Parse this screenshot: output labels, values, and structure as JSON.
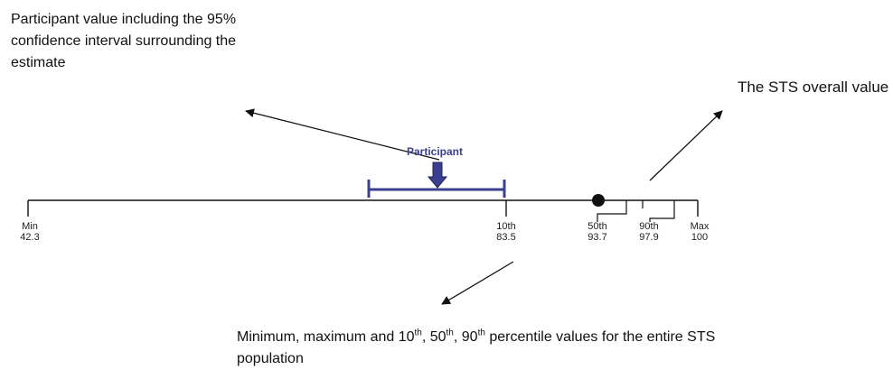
{
  "annotations": {
    "participant_note": "Participant value including the 95% confidence interval surrounding the estimate",
    "sts_overall_note": "The STS overall value",
    "bottom_note": {
      "prefix": "Minimum, maximum and 10",
      "sup1": "th",
      "mid1": ", 50",
      "sup2": "th",
      "mid2": ", 90",
      "sup3": "th",
      "suffix": " percentile values for the entire STS population"
    }
  },
  "scale": {
    "participant_label": "Participant",
    "markers": [
      {
        "name": "Min",
        "value": "42.3"
      },
      {
        "name": "10th",
        "value": "83.5"
      },
      {
        "name": "50th",
        "value": "93.7"
      },
      {
        "name": "90th",
        "value": "97.9"
      },
      {
        "name": "Max",
        "value": "100"
      }
    ]
  },
  "colors": {
    "participant": "#3b3f8f",
    "line": "#111111"
  }
}
